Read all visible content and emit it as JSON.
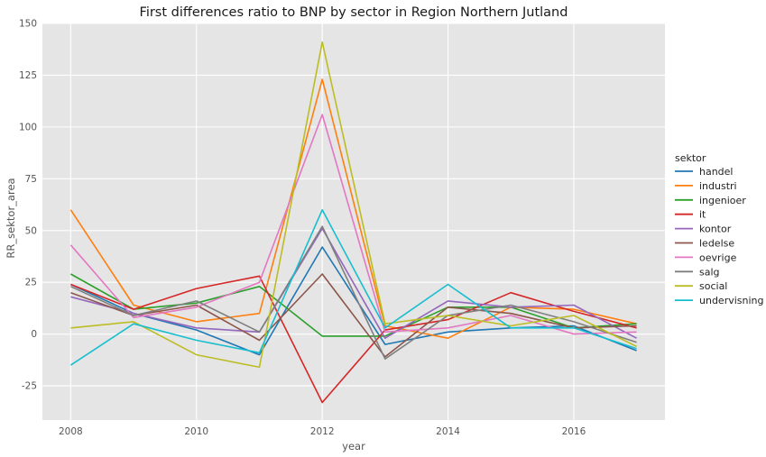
{
  "chart_data": {
    "type": "line",
    "title": "First differences ratio to BNP by sector in Region Northern Jutland",
    "xlabel": "year",
    "ylabel": "RR_sektor_area",
    "xlim": [
      2007.55,
      2017.45
    ],
    "ylim": [
      -41.5,
      150
    ],
    "x_ticks": [
      2008,
      2010,
      2012,
      2014,
      2016
    ],
    "y_ticks": [
      -25,
      0,
      25,
      50,
      75,
      100,
      125,
      150
    ],
    "grid": true,
    "legend_title": "sektor",
    "legend_position": "right",
    "x": [
      2008,
      2009,
      2010,
      2011,
      2012,
      2013,
      2014,
      2015,
      2016,
      2017
    ],
    "series": [
      {
        "name": "handel",
        "color": "#1f77b4",
        "values": [
          24,
          10,
          2,
          -10,
          42,
          -5,
          1,
          3,
          4,
          -8
        ]
      },
      {
        "name": "industri",
        "color": "#ff7f0e",
        "values": [
          60,
          14,
          6,
          10,
          123,
          4,
          -2,
          13,
          12,
          5
        ]
      },
      {
        "name": "ingenioer",
        "color": "#2ca02c",
        "values": [
          29,
          12,
          15,
          23,
          -1,
          -1,
          13,
          13,
          3,
          5
        ]
      },
      {
        "name": "it",
        "color": "#d62728",
        "values": [
          24,
          12,
          22,
          28,
          -33,
          2,
          7,
          20,
          11,
          3
        ]
      },
      {
        "name": "kontor",
        "color": "#9467bd",
        "values": [
          18,
          10,
          3,
          1,
          51,
          -2,
          16,
          13,
          14,
          -2
        ]
      },
      {
        "name": "ledelse",
        "color": "#8c564b",
        "values": [
          20,
          9,
          14,
          -3,
          29,
          -11,
          13,
          10,
          3,
          4
        ]
      },
      {
        "name": "oevrige",
        "color": "#e377c2",
        "values": [
          43,
          8,
          13,
          25,
          106,
          1,
          3,
          9,
          0,
          1
        ]
      },
      {
        "name": "salg",
        "color": "#7f7f7f",
        "values": [
          23,
          9,
          16,
          1,
          52,
          -12,
          9,
          14,
          6,
          -4
        ]
      },
      {
        "name": "social",
        "color": "#bcbd22",
        "values": [
          3,
          6,
          -10,
          -16,
          141,
          5,
          9,
          4,
          9,
          -6
        ]
      },
      {
        "name": "undervisning",
        "color": "#17becf",
        "values": [
          -15,
          5,
          -3,
          -9,
          60,
          3,
          24,
          3,
          3,
          -7
        ]
      }
    ]
  }
}
